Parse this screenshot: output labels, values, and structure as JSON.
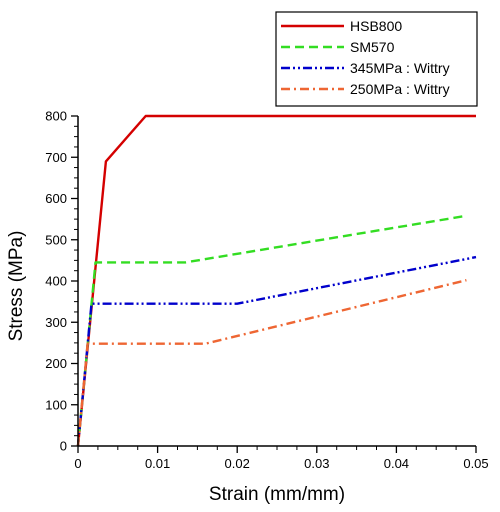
{
  "chart_data": {
    "type": "line",
    "xlabel": "Strain (mm/mm)",
    "ylabel": "Stress (MPa)",
    "xlim": [
      0,
      0.05
    ],
    "ylim": [
      0,
      800
    ],
    "xticks": [
      0,
      0.01,
      0.02,
      0.03,
      0.04,
      0.05
    ],
    "xtick_labels": [
      "0",
      "0.01",
      "0.02",
      "0.03",
      "0.04",
      "0.05"
    ],
    "yticks": [
      0,
      100,
      200,
      300,
      400,
      500,
      600,
      700,
      800
    ],
    "ytick_labels": [
      "0",
      "100",
      "200",
      "300",
      "400",
      "500",
      "600",
      "700",
      "800"
    ],
    "grid": false,
    "legend_position": "top-right",
    "series": [
      {
        "name": "HSB800",
        "color": "#d40000",
        "dash": "solid",
        "x": [
          0,
          0.0035,
          0.0085,
          0.05
        ],
        "y": [
          0,
          690,
          800,
          800
        ]
      },
      {
        "name": "SM570",
        "color": "#33dd22",
        "dash": "dashed",
        "x": [
          0,
          0.0022,
          0.0135,
          0.0488
        ],
        "y": [
          0,
          445,
          445,
          558
        ]
      },
      {
        "name": "345MPa : Wittry",
        "color": "#0000cc",
        "dash": "dash-dot-dot",
        "x": [
          0,
          0.0017,
          0.02,
          0.05
        ],
        "y": [
          0,
          345,
          345,
          458
        ]
      },
      {
        "name": "250MPa : Wittry",
        "color": "#ee6633",
        "dash": "dash-dot",
        "x": [
          0,
          0.0012,
          0.016,
          0.0488
        ],
        "y": [
          0,
          248,
          248,
          402
        ]
      }
    ]
  }
}
